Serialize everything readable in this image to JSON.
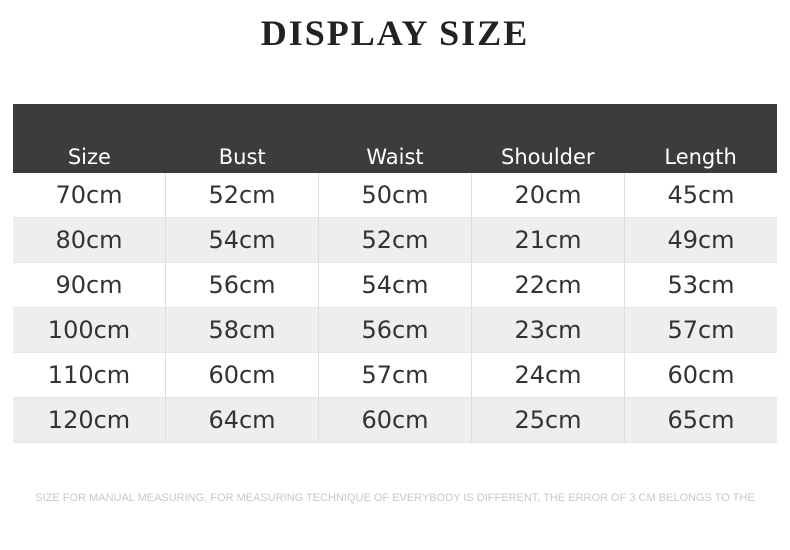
{
  "title": "DISPLAY SIZE",
  "table": {
    "headers": [
      "Size",
      "Bust",
      "Waist",
      "Shoulder",
      "Length"
    ],
    "rows": [
      [
        "70cm",
        "52cm",
        "50cm",
        "20cm",
        "45cm"
      ],
      [
        "80cm",
        "54cm",
        "52cm",
        "21cm",
        "49cm"
      ],
      [
        "90cm",
        "56cm",
        "54cm",
        "22cm",
        "53cm"
      ],
      [
        "100cm",
        "58cm",
        "56cm",
        "23cm",
        "57cm"
      ],
      [
        "110cm",
        "60cm",
        "57cm",
        "24cm",
        "60cm"
      ],
      [
        "120cm",
        "64cm",
        "60cm",
        "25cm",
        "65cm"
      ]
    ]
  },
  "note": "SIZE FOR MANUAL MEASURING, FOR MEASURING TECHNIQUE OF EVERYBODY IS DIFFERENT, THE ERROR OF 3 CM BELONGS TO THE",
  "colors": {
    "header_bg": "#3c3c3c",
    "alt_row": "#eeeeee"
  }
}
